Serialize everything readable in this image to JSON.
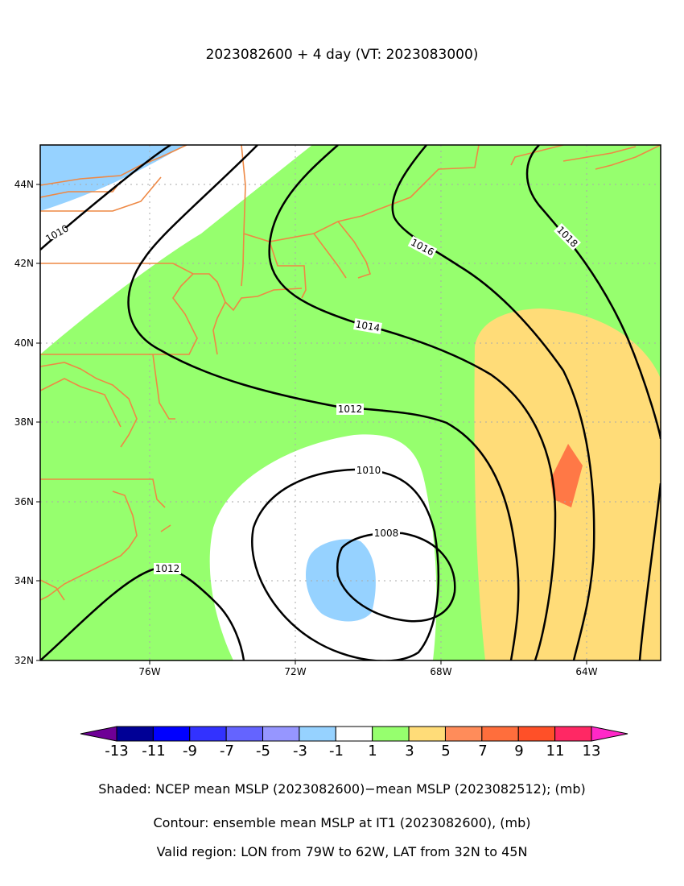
{
  "title": "2023082600 + 4 day (VT: 2023083000)",
  "axes": {
    "lat_ticks": [
      "44N",
      "42N",
      "40N",
      "38N",
      "36N",
      "34N",
      "32N"
    ],
    "lon_ticks": [
      "76W",
      "72W",
      "68W",
      "64W"
    ]
  },
  "colors": {
    "green": "#96ff6e",
    "white": "#ffffff",
    "light_blue": "#96d2ff",
    "yellow": "#ffdc78",
    "orange": "#ff7846",
    "coast": "#ee8844"
  },
  "contours": {
    "labels": [
      "1010",
      "1016",
      "1018",
      "1014",
      "1012",
      "1010",
      "1008",
      "1012"
    ]
  },
  "colorbar": {
    "labels": [
      "-13",
      "-11",
      "-9",
      "-7",
      "-5",
      "-3",
      "-1",
      "1",
      "3",
      "5",
      "7",
      "9",
      "11",
      "13"
    ],
    "colors": [
      "#000096",
      "#0000ff",
      "#3232ff",
      "#6464ff",
      "#9696ff",
      "#96d2ff",
      "#ffffff",
      "#96ff6e",
      "#ffdc78",
      "#ff8c5a",
      "#ff6e3c",
      "#ff5028",
      "#ff2864"
    ],
    "under_color": "#6e0096",
    "over_color": "#ff28c8"
  },
  "captions": [
    "Shaded: NCEP mean MSLP (2023082600)−mean MSLP (2023082512); (mb)",
    "Contour: ensemble mean MSLP at IT1 (2023082600), (mb)",
    "Valid region: LON from 79W to 62W, LAT from 32N to 45N"
  ]
}
